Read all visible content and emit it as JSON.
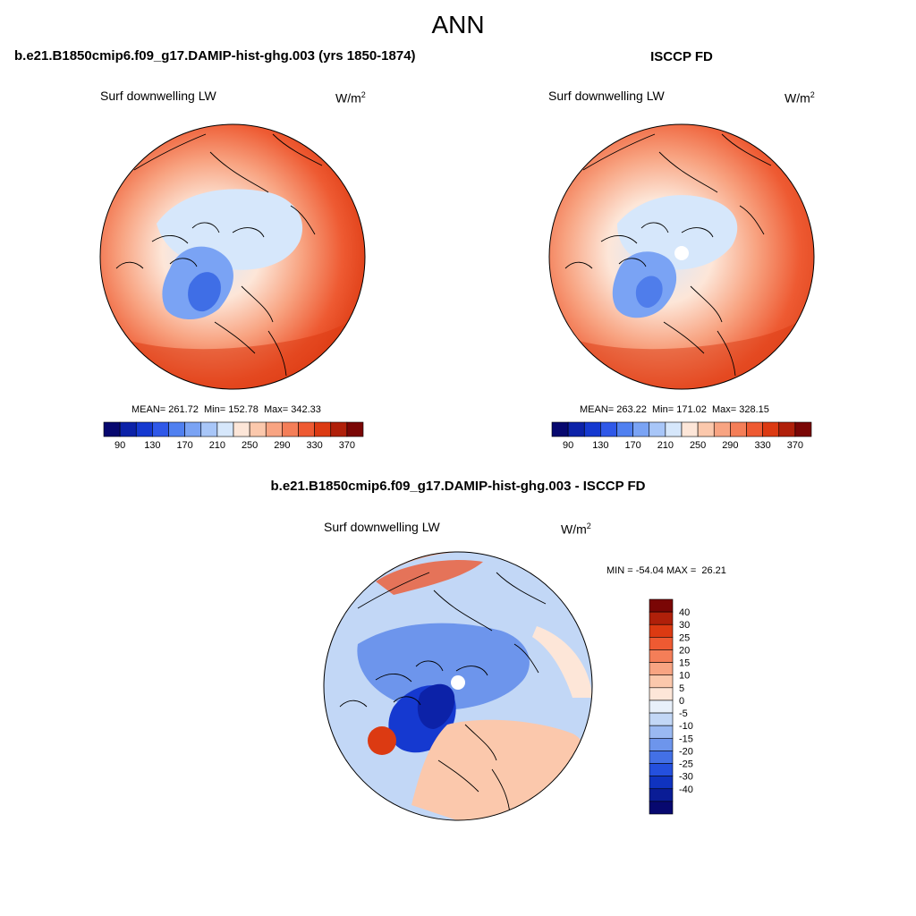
{
  "page_title": "ANN",
  "chart_data": [
    {
      "type": "polar-map",
      "title": "b.e21.B1850cmip6.f09_g17.DAMIP-hist-ghg.003 (yrs 1850-1874)",
      "variable": "Surf downwelling LW",
      "units": "W/m",
      "units_exp": "2",
      "stats": {
        "mean": "261.72",
        "min": "152.78",
        "max": "342.33"
      },
      "stats_text": "MEAN= 261.72  Min= 152.78  Max= 342.33",
      "colorbar": {
        "orientation": "horizontal",
        "levels": [
          90,
          110,
          130,
          150,
          170,
          190,
          210,
          230,
          250,
          270,
          290,
          310,
          330,
          350,
          370
        ],
        "tick_labels": [
          "90",
          "130",
          "170",
          "210",
          "250",
          "290",
          "330",
          "370"
        ],
        "colors": [
          "#07086f",
          "#0c22a8",
          "#1539d0",
          "#2f58e8",
          "#5080f0",
          "#7aa3f4",
          "#a8c6f8",
          "#d6e7fb",
          "#fde6d8",
          "#fbc8ac",
          "#f8a482",
          "#f47e58",
          "#ee5a32",
          "#dc3a12",
          "#b0200a",
          "#7a0605"
        ]
      }
    },
    {
      "type": "polar-map",
      "title": "ISCCP FD",
      "variable": "Surf downwelling LW",
      "units": "W/m",
      "units_exp": "2",
      "stats": {
        "mean": "263.22",
        "min": "171.02",
        "max": "328.15"
      },
      "stats_text": "MEAN= 263.22  Min= 171.02  Max= 328.15",
      "colorbar": {
        "orientation": "horizontal",
        "levels": [
          90,
          110,
          130,
          150,
          170,
          190,
          210,
          230,
          250,
          270,
          290,
          310,
          330,
          350,
          370
        ],
        "tick_labels": [
          "90",
          "130",
          "170",
          "210",
          "250",
          "290",
          "330",
          "370"
        ]
      }
    },
    {
      "type": "polar-map",
      "title": "b.e21.B1850cmip6.f09_g17.DAMIP-hist-ghg.003 - ISCCP FD",
      "variable": "Surf downwelling LW",
      "units": "W/m",
      "units_exp": "2",
      "stats": {
        "min": "-54.04",
        "max": "26.21"
      },
      "stats_text": "MIN = -54.04 MAX =  26.21",
      "colorbar": {
        "orientation": "vertical",
        "tick_labels": [
          "40",
          "30",
          "25",
          "20",
          "15",
          "10",
          "5",
          "0",
          "-5",
          "-10",
          "-15",
          "-20",
          "-25",
          "-30",
          "-40"
        ],
        "colors": [
          "#7a0605",
          "#b0200a",
          "#dc3a12",
          "#ee5a32",
          "#f47e58",
          "#f8a482",
          "#fbc8ac",
          "#fde6d8",
          "#e8f0fa",
          "#c2d7f6",
          "#9ab9f2",
          "#6d95ec",
          "#4370e6",
          "#2450de",
          "#0f33c0",
          "#0a1c96",
          "#07086f"
        ]
      }
    }
  ]
}
